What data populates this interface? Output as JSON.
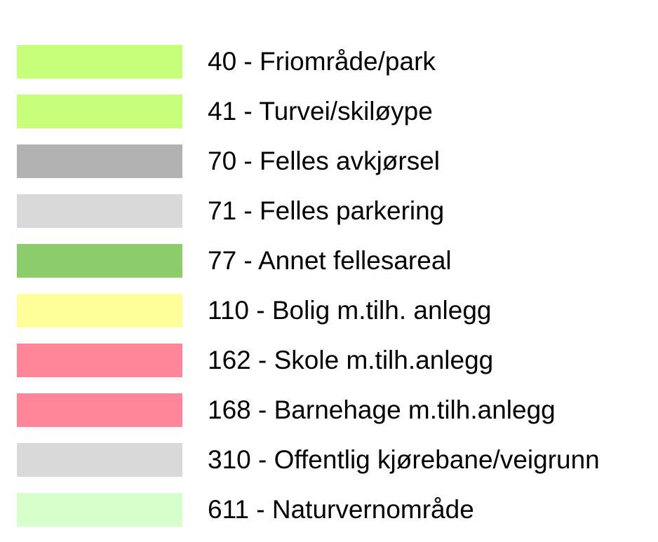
{
  "legend": {
    "items": [
      {
        "label": "40 - Friområde/park",
        "color": "#c8ff7a"
      },
      {
        "label": "41 - Turvei/skiløype",
        "color": "#c8ff7a"
      },
      {
        "label": "70 - Felles avkjørsel",
        "color": "#b2b2b2"
      },
      {
        "label": "71 - Felles parkering",
        "color": "#d9d9d9"
      },
      {
        "label": "77 - Annet fellesareal",
        "color": "#8ccc6a"
      },
      {
        "label": "110 - Bolig m.tilh. anlegg",
        "color": "#ffff99"
      },
      {
        "label": "162 - Skole m.tilh.anlegg",
        "color": "#ff8599"
      },
      {
        "label": "168 - Barnehage m.tilh.anlegg",
        "color": "#ff8599"
      },
      {
        "label": "310 - Offentlig kjørebane/veigrunn",
        "color": "#d9d9d9"
      },
      {
        "label": "611 - Naturvernområde",
        "color": "#d6ffcc"
      }
    ]
  }
}
